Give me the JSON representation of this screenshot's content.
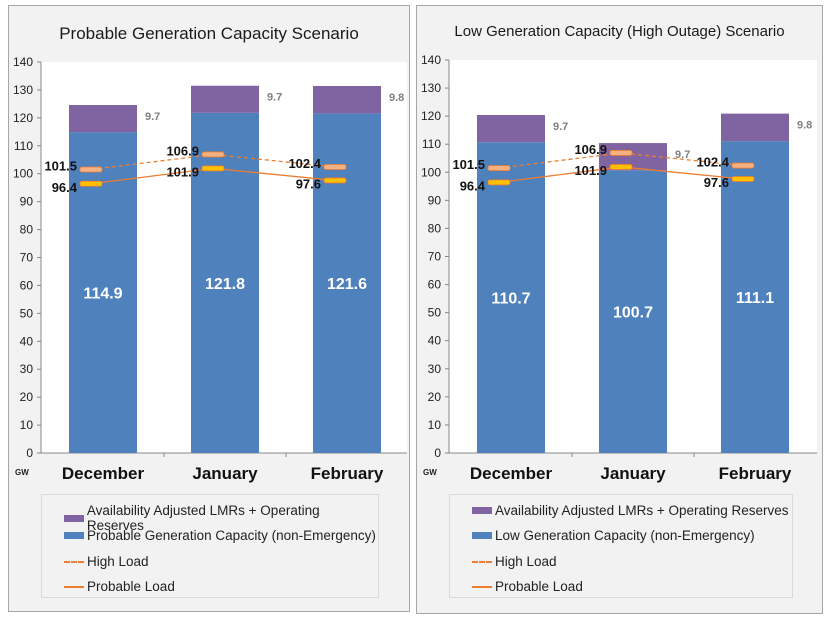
{
  "chart_data": [
    {
      "type": "bar",
      "title": "Probable Generation Capacity Scenario",
      "ylabel": "GW",
      "ylim": [
        0,
        140
      ],
      "yticks": [
        0,
        10,
        20,
        30,
        40,
        50,
        60,
        70,
        80,
        90,
        100,
        110,
        120,
        130,
        140
      ],
      "categories": [
        "December",
        "January",
        "February"
      ],
      "stacked": true,
      "grid": false,
      "legend_position": "bottom",
      "series": [
        {
          "name": "Probable Generation Capacity (non-Emergency)",
          "kind": "bar",
          "color": "#4f81bd",
          "values": [
            114.9,
            121.8,
            121.6
          ],
          "labels": [
            "114.9",
            "121.8",
            "121.6"
          ]
        },
        {
          "name": "Availability Adjusted LMRs + Operating Reserves",
          "kind": "bar",
          "color": "#8064a2",
          "values": [
            9.7,
            9.7,
            9.8
          ],
          "labels": [
            "9.7",
            "9.7",
            "9.8"
          ]
        },
        {
          "name": "High Load",
          "kind": "line",
          "dashed": true,
          "color": "#ed7d31",
          "marker_color": "#f4b183",
          "values": [
            101.5,
            106.9,
            102.4
          ],
          "labels": [
            "101.5",
            "106.9",
            "102.4"
          ]
        },
        {
          "name": "Probable Load",
          "kind": "line",
          "dashed": false,
          "color": "#ed7d31",
          "marker_color": "#ffc000",
          "values": [
            96.4,
            101.9,
            97.6
          ],
          "labels": [
            "96.4",
            "101.9",
            "97.6"
          ]
        }
      ]
    },
    {
      "type": "bar",
      "title": "Low Generation Capacity (High Outage) Scenario",
      "ylabel": "GW",
      "ylim": [
        0,
        140
      ],
      "yticks": [
        0,
        10,
        20,
        30,
        40,
        50,
        60,
        70,
        80,
        90,
        100,
        110,
        120,
        130,
        140
      ],
      "categories": [
        "December",
        "January",
        "February"
      ],
      "stacked": true,
      "grid": false,
      "legend_position": "bottom",
      "series": [
        {
          "name": "Low Generation Capacity (non-Emergency)",
          "kind": "bar",
          "color": "#4f81bd",
          "values": [
            110.7,
            100.7,
            111.1
          ],
          "labels": [
            "110.7",
            "100.7",
            "111.1"
          ]
        },
        {
          "name": "Availability Adjusted LMRs + Operating Reserves",
          "kind": "bar",
          "color": "#8064a2",
          "values": [
            9.7,
            9.7,
            9.8
          ],
          "labels": [
            "9.7",
            "9.7",
            "9.8"
          ]
        },
        {
          "name": "High Load",
          "kind": "line",
          "dashed": true,
          "color": "#ed7d31",
          "marker_color": "#f4b183",
          "values": [
            101.5,
            106.9,
            102.4
          ],
          "labels": [
            "101.5",
            "106.9",
            "102.4"
          ]
        },
        {
          "name": "Probable Load",
          "kind": "line",
          "dashed": false,
          "color": "#ed7d31",
          "marker_color": "#ffc000",
          "values": [
            96.4,
            101.9,
            97.6
          ],
          "labels": [
            "96.4",
            "101.9",
            "97.6"
          ]
        }
      ]
    }
  ]
}
